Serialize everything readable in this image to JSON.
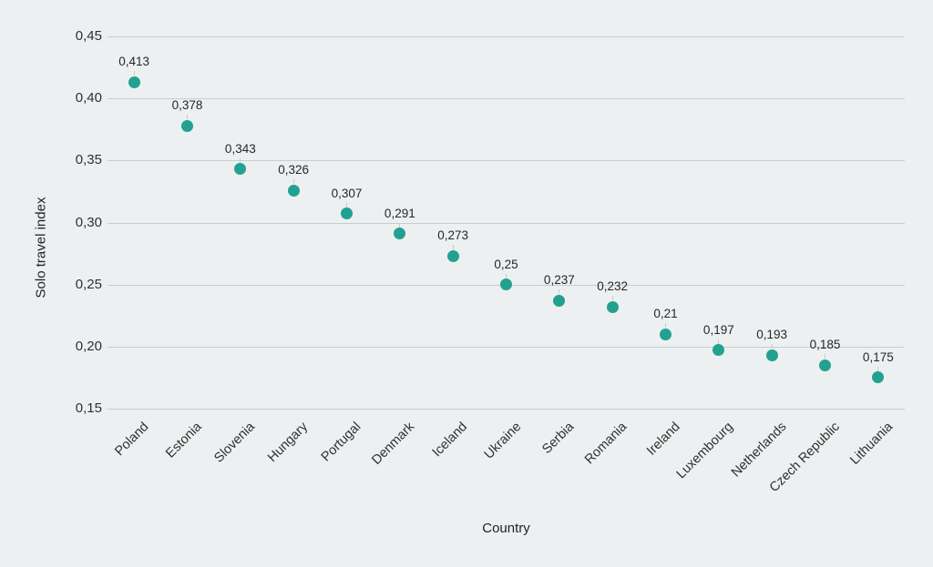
{
  "chart_data": {
    "type": "scatter",
    "title": "",
    "xlabel": "Country",
    "ylabel": "Solo travel index",
    "categories": [
      "Poland",
      "Estonia",
      "Slovenia",
      "Hungary",
      "Portugal",
      "Denmark",
      "Iceland",
      "Ukraine",
      "Serbia",
      "Romania",
      "Ireland",
      "Luxembourg",
      "Netherlands",
      "Czech Republic",
      "Lithuania"
    ],
    "values": [
      0.413,
      0.378,
      0.343,
      0.326,
      0.307,
      0.291,
      0.273,
      0.25,
      0.237,
      0.232,
      0.21,
      0.197,
      0.193,
      0.185,
      0.175
    ],
    "point_labels": [
      "0,413",
      "0,378",
      "0,343",
      "0,326",
      "0,307",
      "0,291",
      "0,273",
      "0,25",
      "0,237",
      "0,232",
      "0,21",
      "0,197",
      "0,193",
      "0,185",
      "0,175"
    ],
    "ylim": [
      0.15,
      0.45
    ],
    "ytick_step": 0.05,
    "ytick_labels": [
      "0,15",
      "0,20",
      "0,25",
      "0,30",
      "0,35",
      "0,40",
      "0,45"
    ],
    "decimal_separator": ",",
    "grid": "horizontal",
    "legend": "none",
    "marker_color": "#22a191",
    "gridline_color": "#c7ccd1",
    "background_color": "#edf0f1",
    "text_color": "#2f2f2f"
  }
}
